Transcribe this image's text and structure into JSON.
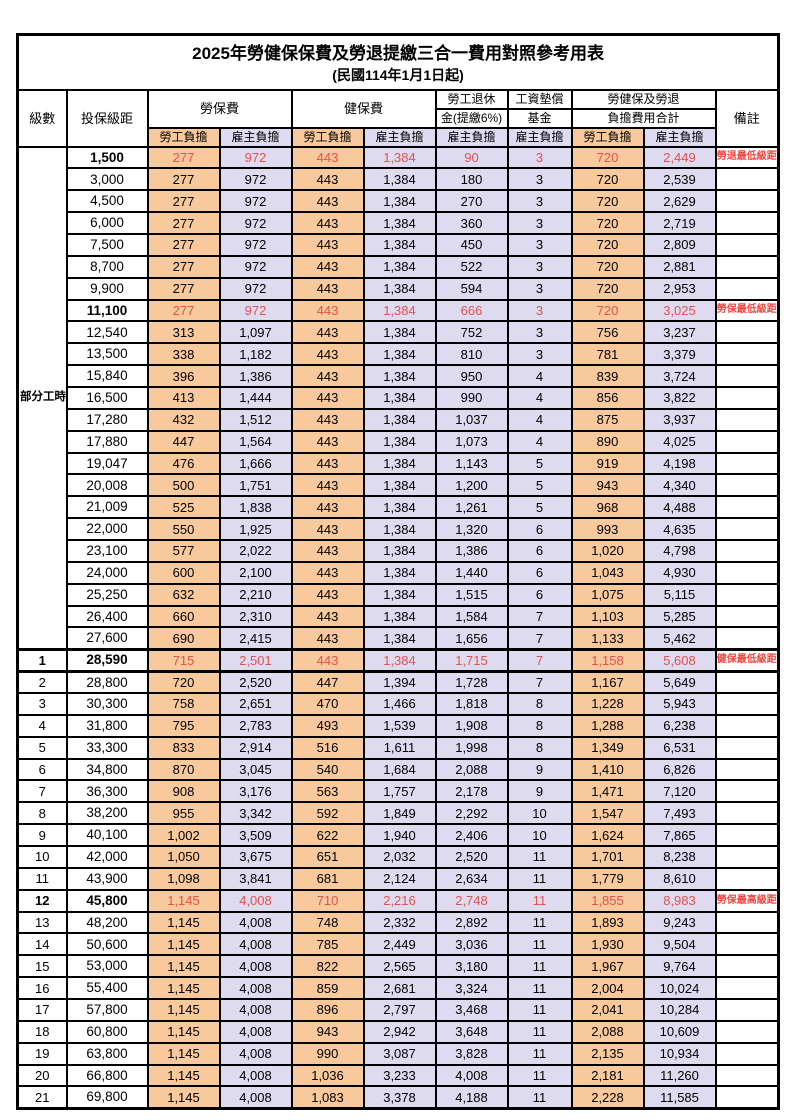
{
  "title": "2025年勞健保保費及勞退提繳三合一費用對照參考用表",
  "subtitle": "(民國114年1月1日起)",
  "colors": {
    "orange": "#f8c99c",
    "lavender": "#dedaf0",
    "hl-red": "#e0524d",
    "remark-red": "#f3453f"
  },
  "header": {
    "level": "級數",
    "bracket": "投保級距",
    "labor_insurance": "勞保費",
    "health_insurance": "健保費",
    "pension_line1": "勞工退休",
    "pension_line2": "金(提繳6%)",
    "wage_fund_line1": "工資墊償",
    "wage_fund_line2": "基金",
    "total_line1": "勞健保及勞退",
    "total_line2": "負擔費用合計",
    "remark": "備註",
    "employee_share": "勞工負擔",
    "employer_share": "雇主負擔"
  },
  "part_time_label": "部分工時",
  "rows": [
    {
      "lv": "",
      "br": "1,500",
      "v": [
        "277",
        "972",
        "443",
        "1,384",
        "90",
        "3",
        "720",
        "2,449"
      ],
      "rm": "勞退最低級距",
      "hl": true
    },
    {
      "lv": "",
      "br": "3,000",
      "v": [
        "277",
        "972",
        "443",
        "1,384",
        "180",
        "3",
        "720",
        "2,539"
      ],
      "rm": "",
      "hl": false
    },
    {
      "lv": "",
      "br": "4,500",
      "v": [
        "277",
        "972",
        "443",
        "1,384",
        "270",
        "3",
        "720",
        "2,629"
      ],
      "rm": "",
      "hl": false
    },
    {
      "lv": "",
      "br": "6,000",
      "v": [
        "277",
        "972",
        "443",
        "1,384",
        "360",
        "3",
        "720",
        "2,719"
      ],
      "rm": "",
      "hl": false
    },
    {
      "lv": "",
      "br": "7,500",
      "v": [
        "277",
        "972",
        "443",
        "1,384",
        "450",
        "3",
        "720",
        "2,809"
      ],
      "rm": "",
      "hl": false
    },
    {
      "lv": "",
      "br": "8,700",
      "v": [
        "277",
        "972",
        "443",
        "1,384",
        "522",
        "3",
        "720",
        "2,881"
      ],
      "rm": "",
      "hl": false
    },
    {
      "lv": "",
      "br": "9,900",
      "v": [
        "277",
        "972",
        "443",
        "1,384",
        "594",
        "3",
        "720",
        "2,953"
      ],
      "rm": "",
      "hl": false
    },
    {
      "lv": "",
      "br": "11,100",
      "v": [
        "277",
        "972",
        "443",
        "1,384",
        "666",
        "3",
        "720",
        "3,025"
      ],
      "rm": "勞保最低級距",
      "hl": true
    },
    {
      "lv": "",
      "br": "12,540",
      "v": [
        "313",
        "1,097",
        "443",
        "1,384",
        "752",
        "3",
        "756",
        "3,237"
      ],
      "rm": "",
      "hl": false
    },
    {
      "lv": "",
      "br": "13,500",
      "v": [
        "338",
        "1,182",
        "443",
        "1,384",
        "810",
        "3",
        "781",
        "3,379"
      ],
      "rm": "",
      "hl": false
    },
    {
      "lv": "",
      "br": "15,840",
      "v": [
        "396",
        "1,386",
        "443",
        "1,384",
        "950",
        "4",
        "839",
        "3,724"
      ],
      "rm": "",
      "hl": false
    },
    {
      "lv": "",
      "br": "16,500",
      "v": [
        "413",
        "1,444",
        "443",
        "1,384",
        "990",
        "4",
        "856",
        "3,822"
      ],
      "rm": "",
      "hl": false
    },
    {
      "lv": "",
      "br": "17,280",
      "v": [
        "432",
        "1,512",
        "443",
        "1,384",
        "1,037",
        "4",
        "875",
        "3,937"
      ],
      "rm": "",
      "hl": false
    },
    {
      "lv": "",
      "br": "17,880",
      "v": [
        "447",
        "1,564",
        "443",
        "1,384",
        "1,073",
        "4",
        "890",
        "4,025"
      ],
      "rm": "",
      "hl": false
    },
    {
      "lv": "",
      "br": "19,047",
      "v": [
        "476",
        "1,666",
        "443",
        "1,384",
        "1,143",
        "5",
        "919",
        "4,198"
      ],
      "rm": "",
      "hl": false
    },
    {
      "lv": "",
      "br": "20,008",
      "v": [
        "500",
        "1,751",
        "443",
        "1,384",
        "1,200",
        "5",
        "943",
        "4,340"
      ],
      "rm": "",
      "hl": false
    },
    {
      "lv": "",
      "br": "21,009",
      "v": [
        "525",
        "1,838",
        "443",
        "1,384",
        "1,261",
        "5",
        "968",
        "4,488"
      ],
      "rm": "",
      "hl": false
    },
    {
      "lv": "",
      "br": "22,000",
      "v": [
        "550",
        "1,925",
        "443",
        "1,384",
        "1,320",
        "6",
        "993",
        "4,635"
      ],
      "rm": "",
      "hl": false
    },
    {
      "lv": "",
      "br": "23,100",
      "v": [
        "577",
        "2,022",
        "443",
        "1,384",
        "1,386",
        "6",
        "1,020",
        "4,798"
      ],
      "rm": "",
      "hl": false
    },
    {
      "lv": "",
      "br": "24,000",
      "v": [
        "600",
        "2,100",
        "443",
        "1,384",
        "1,440",
        "6",
        "1,043",
        "4,930"
      ],
      "rm": "",
      "hl": false
    },
    {
      "lv": "",
      "br": "25,250",
      "v": [
        "632",
        "2,210",
        "443",
        "1,384",
        "1,515",
        "6",
        "1,075",
        "5,115"
      ],
      "rm": "",
      "hl": false
    },
    {
      "lv": "",
      "br": "26,400",
      "v": [
        "660",
        "2,310",
        "443",
        "1,384",
        "1,584",
        "7",
        "1,103",
        "5,285"
      ],
      "rm": "",
      "hl": false
    },
    {
      "lv": "",
      "br": "27,600",
      "v": [
        "690",
        "2,415",
        "443",
        "1,384",
        "1,656",
        "7",
        "1,133",
        "5,462"
      ],
      "rm": "",
      "hl": false
    },
    {
      "lv": "1",
      "br": "28,590",
      "v": [
        "715",
        "2,501",
        "443",
        "1,384",
        "1,715",
        "7",
        "1,158",
        "5,608"
      ],
      "rm": "健保最低級距",
      "hl": true
    },
    {
      "lv": "2",
      "br": "28,800",
      "v": [
        "720",
        "2,520",
        "447",
        "1,394",
        "1,728",
        "7",
        "1,167",
        "5,649"
      ],
      "rm": "",
      "hl": false
    },
    {
      "lv": "3",
      "br": "30,300",
      "v": [
        "758",
        "2,651",
        "470",
        "1,466",
        "1,818",
        "8",
        "1,228",
        "5,943"
      ],
      "rm": "",
      "hl": false
    },
    {
      "lv": "4",
      "br": "31,800",
      "v": [
        "795",
        "2,783",
        "493",
        "1,539",
        "1,908",
        "8",
        "1,288",
        "6,238"
      ],
      "rm": "",
      "hl": false
    },
    {
      "lv": "5",
      "br": "33,300",
      "v": [
        "833",
        "2,914",
        "516",
        "1,611",
        "1,998",
        "8",
        "1,349",
        "6,531"
      ],
      "rm": "",
      "hl": false
    },
    {
      "lv": "6",
      "br": "34,800",
      "v": [
        "870",
        "3,045",
        "540",
        "1,684",
        "2,088",
        "9",
        "1,410",
        "6,826"
      ],
      "rm": "",
      "hl": false
    },
    {
      "lv": "7",
      "br": "36,300",
      "v": [
        "908",
        "3,176",
        "563",
        "1,757",
        "2,178",
        "9",
        "1,471",
        "7,120"
      ],
      "rm": "",
      "hl": false
    },
    {
      "lv": "8",
      "br": "38,200",
      "v": [
        "955",
        "3,342",
        "592",
        "1,849",
        "2,292",
        "10",
        "1,547",
        "7,493"
      ],
      "rm": "",
      "hl": false
    },
    {
      "lv": "9",
      "br": "40,100",
      "v": [
        "1,002",
        "3,509",
        "622",
        "1,940",
        "2,406",
        "10",
        "1,624",
        "7,865"
      ],
      "rm": "",
      "hl": false
    },
    {
      "lv": "10",
      "br": "42,000",
      "v": [
        "1,050",
        "3,675",
        "651",
        "2,032",
        "2,520",
        "11",
        "1,701",
        "8,238"
      ],
      "rm": "",
      "hl": false
    },
    {
      "lv": "11",
      "br": "43,900",
      "v": [
        "1,098",
        "3,841",
        "681",
        "2,124",
        "2,634",
        "11",
        "1,779",
        "8,610"
      ],
      "rm": "",
      "hl": false
    },
    {
      "lv": "12",
      "br": "45,800",
      "v": [
        "1,145",
        "4,008",
        "710",
        "2,216",
        "2,748",
        "11",
        "1,855",
        "8,983"
      ],
      "rm": "勞保最高級距",
      "hl": true
    },
    {
      "lv": "13",
      "br": "48,200",
      "v": [
        "1,145",
        "4,008",
        "748",
        "2,332",
        "2,892",
        "11",
        "1,893",
        "9,243"
      ],
      "rm": "",
      "hl": false
    },
    {
      "lv": "14",
      "br": "50,600",
      "v": [
        "1,145",
        "4,008",
        "785",
        "2,449",
        "3,036",
        "11",
        "1,930",
        "9,504"
      ],
      "rm": "",
      "hl": false
    },
    {
      "lv": "15",
      "br": "53,000",
      "v": [
        "1,145",
        "4,008",
        "822",
        "2,565",
        "3,180",
        "11",
        "1,967",
        "9,764"
      ],
      "rm": "",
      "hl": false
    },
    {
      "lv": "16",
      "br": "55,400",
      "v": [
        "1,145",
        "4,008",
        "859",
        "2,681",
        "3,324",
        "11",
        "2,004",
        "10,024"
      ],
      "rm": "",
      "hl": false
    },
    {
      "lv": "17",
      "br": "57,800",
      "v": [
        "1,145",
        "4,008",
        "896",
        "2,797",
        "3,468",
        "11",
        "2,041",
        "10,284"
      ],
      "rm": "",
      "hl": false
    },
    {
      "lv": "18",
      "br": "60,800",
      "v": [
        "1,145",
        "4,008",
        "943",
        "2,942",
        "3,648",
        "11",
        "2,088",
        "10,609"
      ],
      "rm": "",
      "hl": false
    },
    {
      "lv": "19",
      "br": "63,800",
      "v": [
        "1,145",
        "4,008",
        "990",
        "3,087",
        "3,828",
        "11",
        "2,135",
        "10,934"
      ],
      "rm": "",
      "hl": false
    },
    {
      "lv": "20",
      "br": "66,800",
      "v": [
        "1,145",
        "4,008",
        "1,036",
        "3,233",
        "4,008",
        "11",
        "2,181",
        "11,260"
      ],
      "rm": "",
      "hl": false
    },
    {
      "lv": "21",
      "br": "69,800",
      "v": [
        "1,145",
        "4,008",
        "1,083",
        "3,378",
        "4,188",
        "11",
        "2,228",
        "11,585"
      ],
      "rm": "",
      "hl": false
    }
  ]
}
